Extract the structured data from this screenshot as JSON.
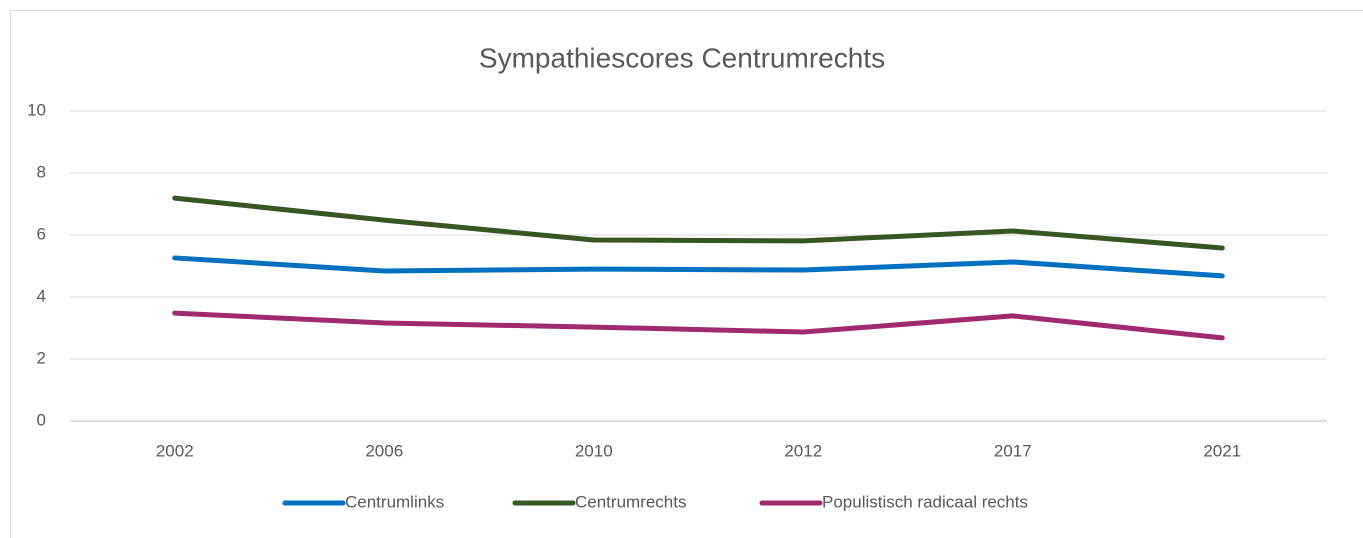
{
  "chart_data": {
    "type": "line",
    "title": "Sympathiescores Centrumrechts",
    "categories": [
      "2002",
      "2006",
      "2010",
      "2012",
      "2017",
      "2021"
    ],
    "series": [
      {
        "name": "Centrumlinks",
        "color": "#0070c0",
        "values": [
          5.26,
          4.84,
          4.9,
          4.87,
          5.13,
          4.68
        ]
      },
      {
        "name": "Centrumrechts",
        "color": "#375623",
        "values": [
          7.19,
          6.48,
          5.84,
          5.81,
          6.13,
          5.58
        ]
      },
      {
        "name": "Populistisch radicaal rechts",
        "color": "#a0296f",
        "values": [
          3.48,
          3.16,
          3.03,
          2.87,
          3.39,
          2.68
        ]
      }
    ],
    "ylim": [
      0,
      10
    ],
    "yticks": [
      0,
      2,
      4,
      6,
      8,
      10
    ],
    "grid": true,
    "legend": "bottom"
  }
}
